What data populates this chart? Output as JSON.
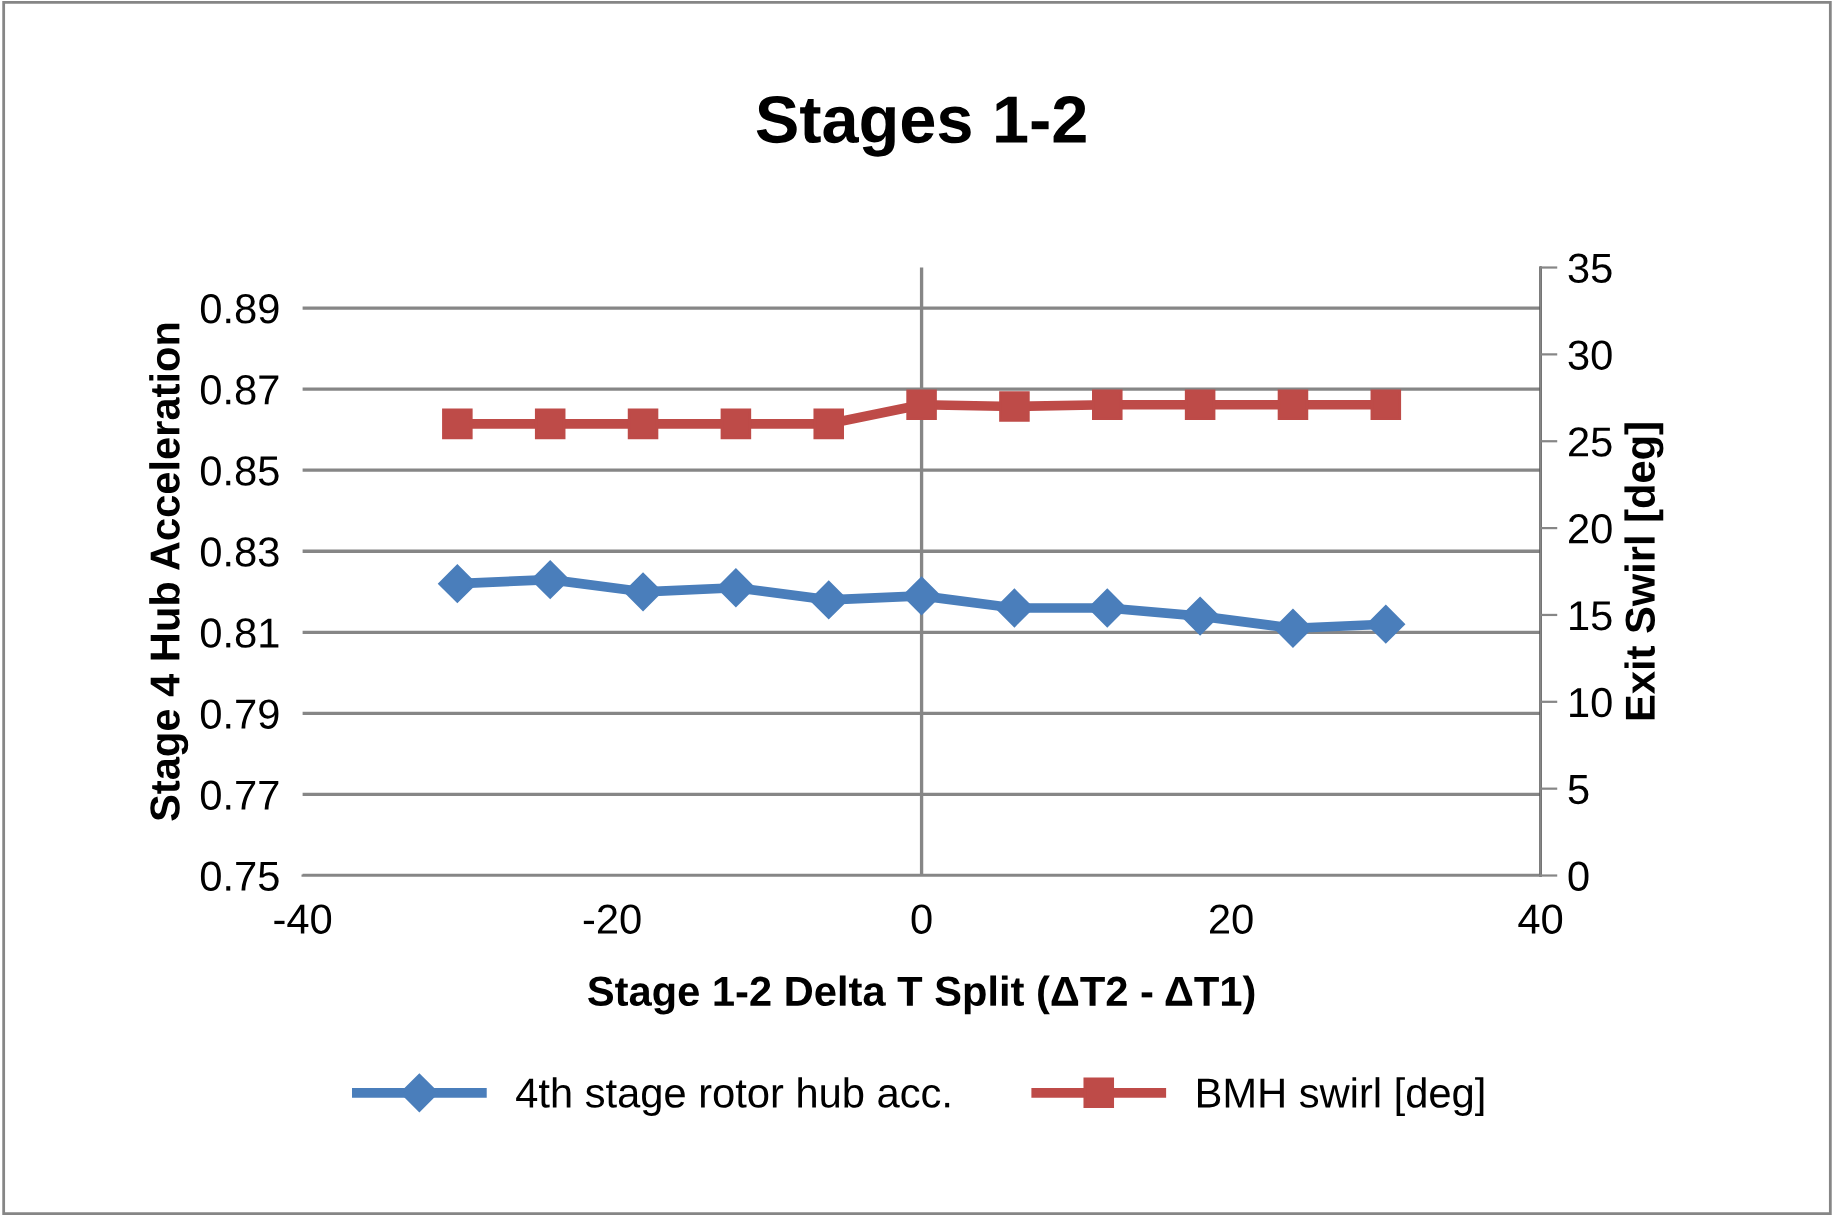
{
  "chart_data": {
    "type": "line",
    "title": "Stages 1-2",
    "xlabel": "Stage 1-2 Delta T Split (ΔT2 - ΔT1)",
    "ylabel": "Stage 4 Hub Acceleration",
    "y2label": "Exit Swirl [deg]",
    "x": [
      -30,
      -24,
      -18,
      -12,
      -6,
      0,
      6,
      12,
      18,
      24,
      30
    ],
    "series": [
      {
        "name": "4th stage rotor hub acc.",
        "color": "#4a7ebb",
        "marker": "diamond",
        "values": [
          0.822,
          0.823,
          0.82,
          0.821,
          0.818,
          0.819,
          0.816,
          0.816,
          0.814,
          0.811,
          0.812
        ]
      },
      {
        "name": "BMH swirl [deg]",
        "color": "#be4b48",
        "marker": "square",
        "axis": "y2",
        "values": [
          26.0,
          26.0,
          26.0,
          26.0,
          26.0,
          27.1,
          27.0,
          27.1,
          27.1,
          27.1,
          27.1
        ]
      }
    ],
    "xlim": [
      -40,
      40
    ],
    "xticks": [
      -40,
      -20,
      0,
      20,
      40
    ],
    "ylim": [
      0.75,
      0.9
    ],
    "yticks": [
      0.75,
      0.77,
      0.79,
      0.81,
      0.83,
      0.85,
      0.87,
      0.89
    ],
    "y2lim": [
      0,
      35
    ],
    "y2ticks": [
      0,
      5,
      10,
      15,
      20,
      25,
      30,
      35
    ],
    "ref_lines": [
      {
        "axis": "x",
        "value": 0,
        "color": "#868686"
      }
    ],
    "grid": "y",
    "legend": "bottom"
  }
}
